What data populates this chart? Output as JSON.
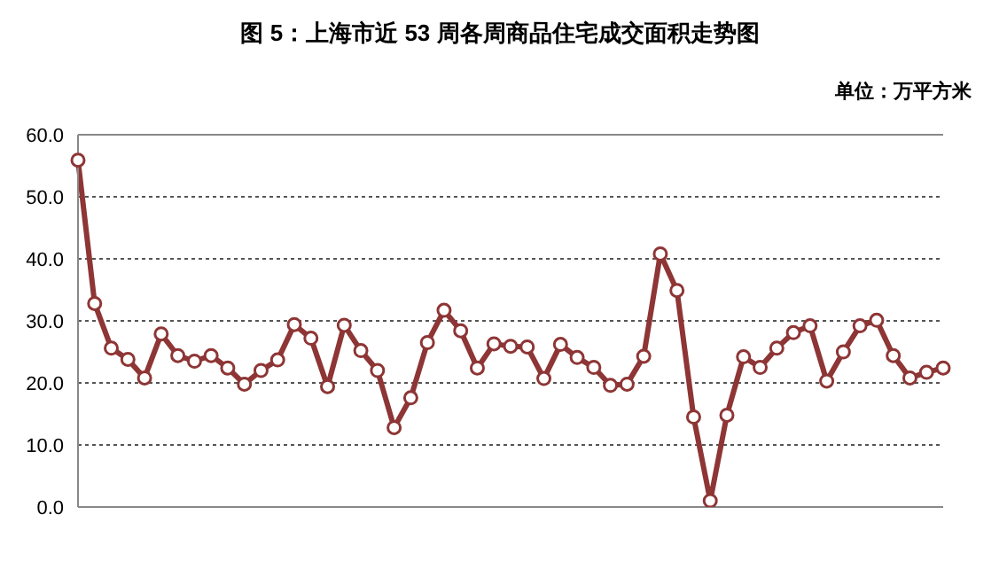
{
  "chart_data": {
    "type": "line",
    "title": "图 5：上海市近 53 周各周商品住宅成交面积走势图",
    "ylabel": "单位：万平方米",
    "categories": [
      null,
      null,
      null,
      null,
      null,
      null,
      null,
      null,
      null,
      null,
      null,
      null,
      null,
      null,
      null,
      null,
      null,
      null,
      null,
      null,
      null,
      null,
      null,
      null,
      null,
      null,
      null,
      null,
      null,
      null,
      null,
      null,
      null,
      null,
      null,
      null,
      null,
      null,
      null,
      null,
      null,
      null,
      null,
      null,
      null,
      null,
      null,
      null,
      null,
      null,
      null,
      null,
      null
    ],
    "series": [
      {
        "color": "#8e3535",
        "values": [
          55.9,
          32.8,
          25.6,
          23.8,
          20.8,
          27.9,
          24.4,
          23.5,
          24.4,
          22.4,
          19.8,
          22.0,
          23.7,
          29.4,
          27.2,
          19.4,
          29.3,
          25.2,
          22.0,
          12.8,
          17.6,
          26.5,
          31.7,
          28.4,
          22.4,
          26.3,
          25.9,
          25.8,
          20.7,
          26.2,
          24.1,
          22.5,
          19.6,
          19.8,
          24.3,
          40.8,
          34.9,
          14.5,
          1.0,
          14.8,
          24.2,
          22.5,
          25.6,
          28.1,
          29.2,
          20.3,
          25.0,
          29.2,
          30.1,
          24.4,
          20.8,
          21.7,
          22.4
        ]
      }
    ],
    "ylim": [
      0,
      60
    ],
    "yticks": [
      {
        "value": 0,
        "label": "0.0"
      },
      {
        "value": 10,
        "label": "10.0"
      },
      {
        "value": 20,
        "label": "20.0"
      },
      {
        "value": 30,
        "label": "30.0"
      },
      {
        "value": 40,
        "label": "40.0"
      },
      {
        "value": 50,
        "label": "50.0"
      },
      {
        "value": 60,
        "label": "60.0"
      }
    ],
    "grid": "y",
    "marker": "circle",
    "line_style": "solid",
    "tick_labels": "y"
  }
}
